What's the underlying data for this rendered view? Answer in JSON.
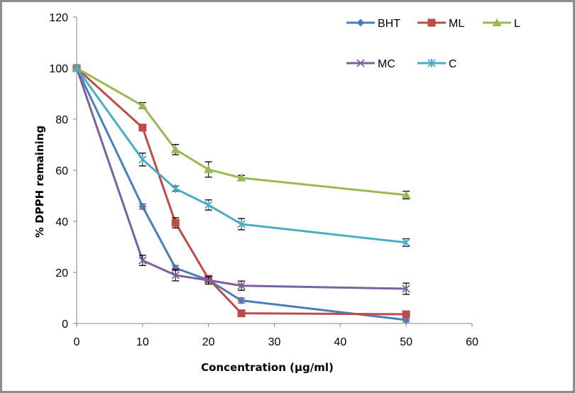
{
  "chart_data": {
    "type": "line",
    "title": "",
    "xlabel": "Concentration (µg/ml)",
    "ylabel": "% DPPH remaining",
    "xlim": [
      0,
      60
    ],
    "ylim": [
      0,
      120
    ],
    "xticks": [
      0,
      10,
      20,
      30,
      40,
      50,
      60
    ],
    "yticks": [
      0,
      20,
      40,
      60,
      80,
      100,
      120
    ],
    "grid": false,
    "legend_position": "top-right",
    "x": [
      0,
      10,
      15,
      20,
      25,
      50
    ],
    "series": [
      {
        "name": "BHT",
        "color": "#4a7ebb",
        "marker": "diamond",
        "error_color": "#e02020",
        "values": [
          100,
          45.8,
          21.7,
          17.0,
          9.0,
          1.4
        ],
        "errors": [
          0.5,
          1.0,
          1.0,
          1.0,
          1.0,
          0.8
        ]
      },
      {
        "name": "ML",
        "color": "#be4b48",
        "marker": "square",
        "error_color": "#000000",
        "values": [
          100,
          76.7,
          39.4,
          17.5,
          4.0,
          3.6
        ],
        "errors": [
          0.5,
          1.2,
          2.0,
          1.0,
          1.0,
          1.0
        ]
      },
      {
        "name": "L",
        "color": "#98b954",
        "marker": "triangle",
        "error_color": "#000000",
        "values": [
          100,
          85.3,
          68.1,
          60.3,
          57.0,
          50.3
        ],
        "errors": [
          0.5,
          1.2,
          2.0,
          3.0,
          1.0,
          1.5
        ]
      },
      {
        "name": "MC",
        "color": "#7d60a0",
        "marker": "x",
        "error_color": "#000000",
        "values": [
          100,
          24.7,
          18.9,
          16.9,
          14.8,
          13.6
        ],
        "errors": [
          0.5,
          2.0,
          2.2,
          1.5,
          1.8,
          2.2
        ]
      },
      {
        "name": "C",
        "color": "#4bacc6",
        "marker": "star",
        "error_color": "#000000",
        "values": [
          100,
          64.2,
          52.8,
          46.4,
          38.9,
          31.7
        ],
        "errors": [
          0.5,
          2.5,
          1.0,
          2.0,
          2.2,
          1.5
        ]
      }
    ]
  }
}
